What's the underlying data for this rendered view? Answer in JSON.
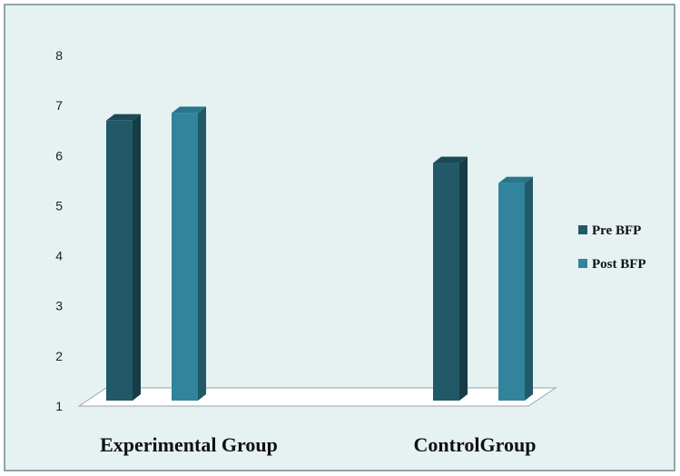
{
  "chart_data": {
    "type": "bar",
    "categories": [
      "Experimental Group",
      "ControlGroup"
    ],
    "series": [
      {
        "name": "Pre BFP",
        "values": [
          6.7,
          5.85
        ]
      },
      {
        "name": "Post BFP",
        "values": [
          6.85,
          5.45
        ]
      }
    ],
    "ylim": [
      1,
      8
    ],
    "y_ticks": [
      "1",
      "2",
      "3",
      "4",
      "5",
      "6",
      "7",
      "8"
    ],
    "grid": false,
    "legend_position": "right",
    "style": "3d",
    "colors": {
      "pre": "#215968",
      "pre_side": "#163d47",
      "pre_top": "#1a4a56",
      "post": "#31849b",
      "post_side": "#215968",
      "post_top": "#2a7589",
      "background": "#e6f1f2",
      "border": "#6e8a8e",
      "floor": "#ffffff"
    }
  }
}
